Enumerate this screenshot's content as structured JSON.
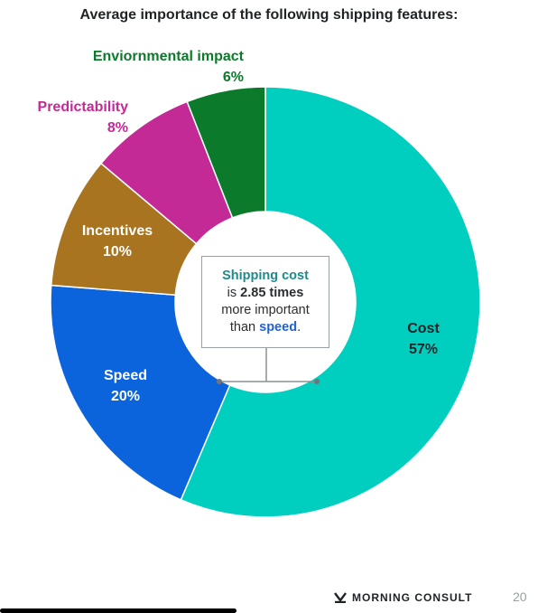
{
  "chart_data": {
    "type": "pie",
    "title": "Average importance of the following shipping features:",
    "slices": [
      {
        "label": "Cost",
        "value": 57,
        "display": "57%",
        "color": "#00cfc0",
        "label_color": "#1f2326"
      },
      {
        "label": "Speed",
        "value": 20,
        "display": "20%",
        "color": "#0c64dc",
        "label_color": "#ffffff"
      },
      {
        "label": "Incentives",
        "value": 10,
        "display": "10%",
        "color": "#a87420",
        "label_color": "#ffffff"
      },
      {
        "label": "Predictability",
        "value": 8,
        "display": "8%",
        "color": "#c42a96",
        "label_color": "#c42a96"
      },
      {
        "label": "Enviornmental impact",
        "value": 6,
        "display": "6%",
        "color": "#0b7a2a",
        "label_color": "#0b7a2a"
      }
    ]
  },
  "callout": {
    "line1": "Shipping cost",
    "line2_pre": "is ",
    "line2_bold": "2.85 times",
    "line3": "more important",
    "line4_pre": "than ",
    "line4_hl": "speed",
    "line4_post": "."
  },
  "footer": {
    "brand": "MORNING CONSULT",
    "page": "20"
  }
}
